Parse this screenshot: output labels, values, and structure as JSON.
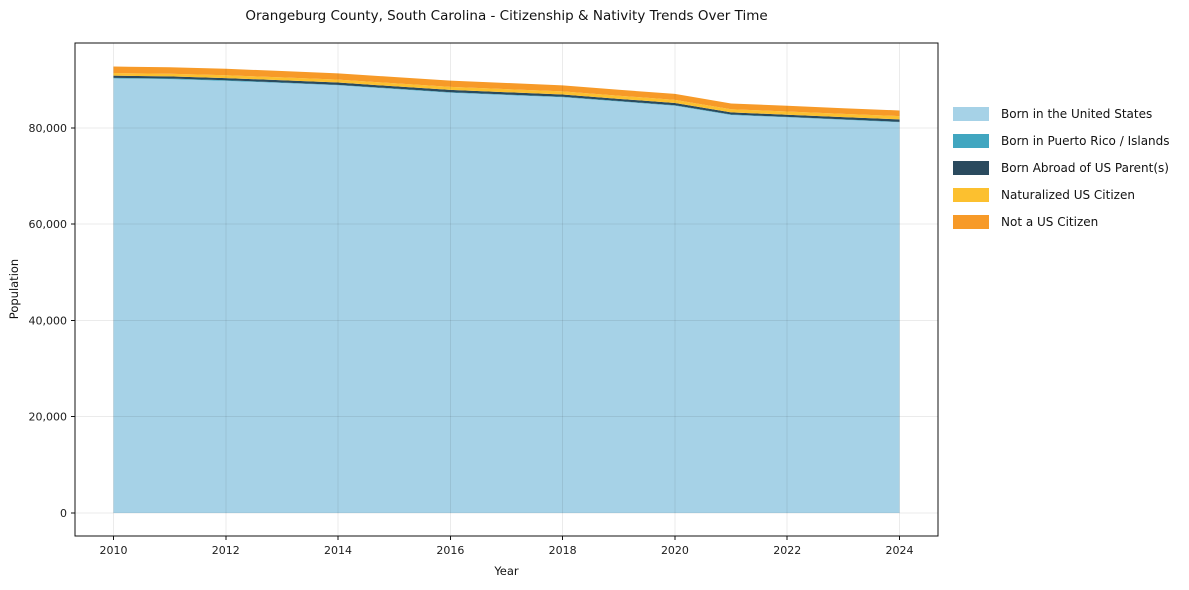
{
  "chart": {
    "title": "Orangeburg County, South Carolina - Citizenship & Nativity Trends Over Time",
    "xlabel": "Year",
    "ylabel": "Population"
  },
  "chart_data": {
    "type": "area",
    "stacked": true,
    "title": "Orangeburg County, South Carolina - Citizenship & Nativity Trends Over Time",
    "xlabel": "Year",
    "ylabel": "Population",
    "x": [
      2010,
      2011,
      2012,
      2013,
      2014,
      2015,
      2016,
      2017,
      2018,
      2019,
      2020,
      2021,
      2022,
      2023,
      2024
    ],
    "series": [
      {
        "name": "Born in the United States",
        "color": "#a6d2e7",
        "values": [
          90300,
          90150,
          89800,
          89350,
          88870,
          88100,
          87330,
          86850,
          86380,
          85500,
          84630,
          82700,
          82220,
          81700,
          81190
        ]
      },
      {
        "name": "Born in Puerto Rico / Islands",
        "color": "#41a6c0",
        "values": [
          120,
          120,
          110,
          110,
          100,
          100,
          100,
          100,
          100,
          100,
          100,
          90,
          90,
          90,
          90
        ]
      },
      {
        "name": "Born Abroad of US Parent(s)",
        "color": "#2a4a5e",
        "values": [
          450,
          450,
          460,
          460,
          470,
          470,
          480,
          480,
          470,
          460,
          460,
          450,
          450,
          470,
          500
        ]
      },
      {
        "name": "Naturalized US Citizen",
        "color": "#fcc02f",
        "values": [
          550,
          560,
          580,
          590,
          600,
          620,
          640,
          640,
          650,
          650,
          660,
          650,
          660,
          670,
          690
        ]
      },
      {
        "name": "Not a US Citizen",
        "color": "#f79a28",
        "values": [
          1350,
          1350,
          1350,
          1330,
          1320,
          1300,
          1280,
          1280,
          1250,
          1240,
          1230,
          1200,
          1190,
          1180,
          1170
        ]
      }
    ],
    "xticks": [
      2010,
      2012,
      2014,
      2016,
      2018,
      2020,
      2022,
      2024
    ],
    "xtick_labels": [
      "2010",
      "2012",
      "2014",
      "2016",
      "2018",
      "2020",
      "2022",
      "2024"
    ],
    "yticks": [
      0,
      20000,
      40000,
      60000,
      80000
    ],
    "ytick_labels": [
      "0",
      "20,000",
      "40,000",
      "60,000",
      "80,000"
    ],
    "xlim": [
      2009.315,
      2024.685
    ],
    "ylim": [
      -4780,
      97660
    ],
    "grid": true,
    "grid_color": "rgba(0,0,0,0.08)",
    "axis_color": "#111111",
    "legend_position": "right-outside"
  }
}
